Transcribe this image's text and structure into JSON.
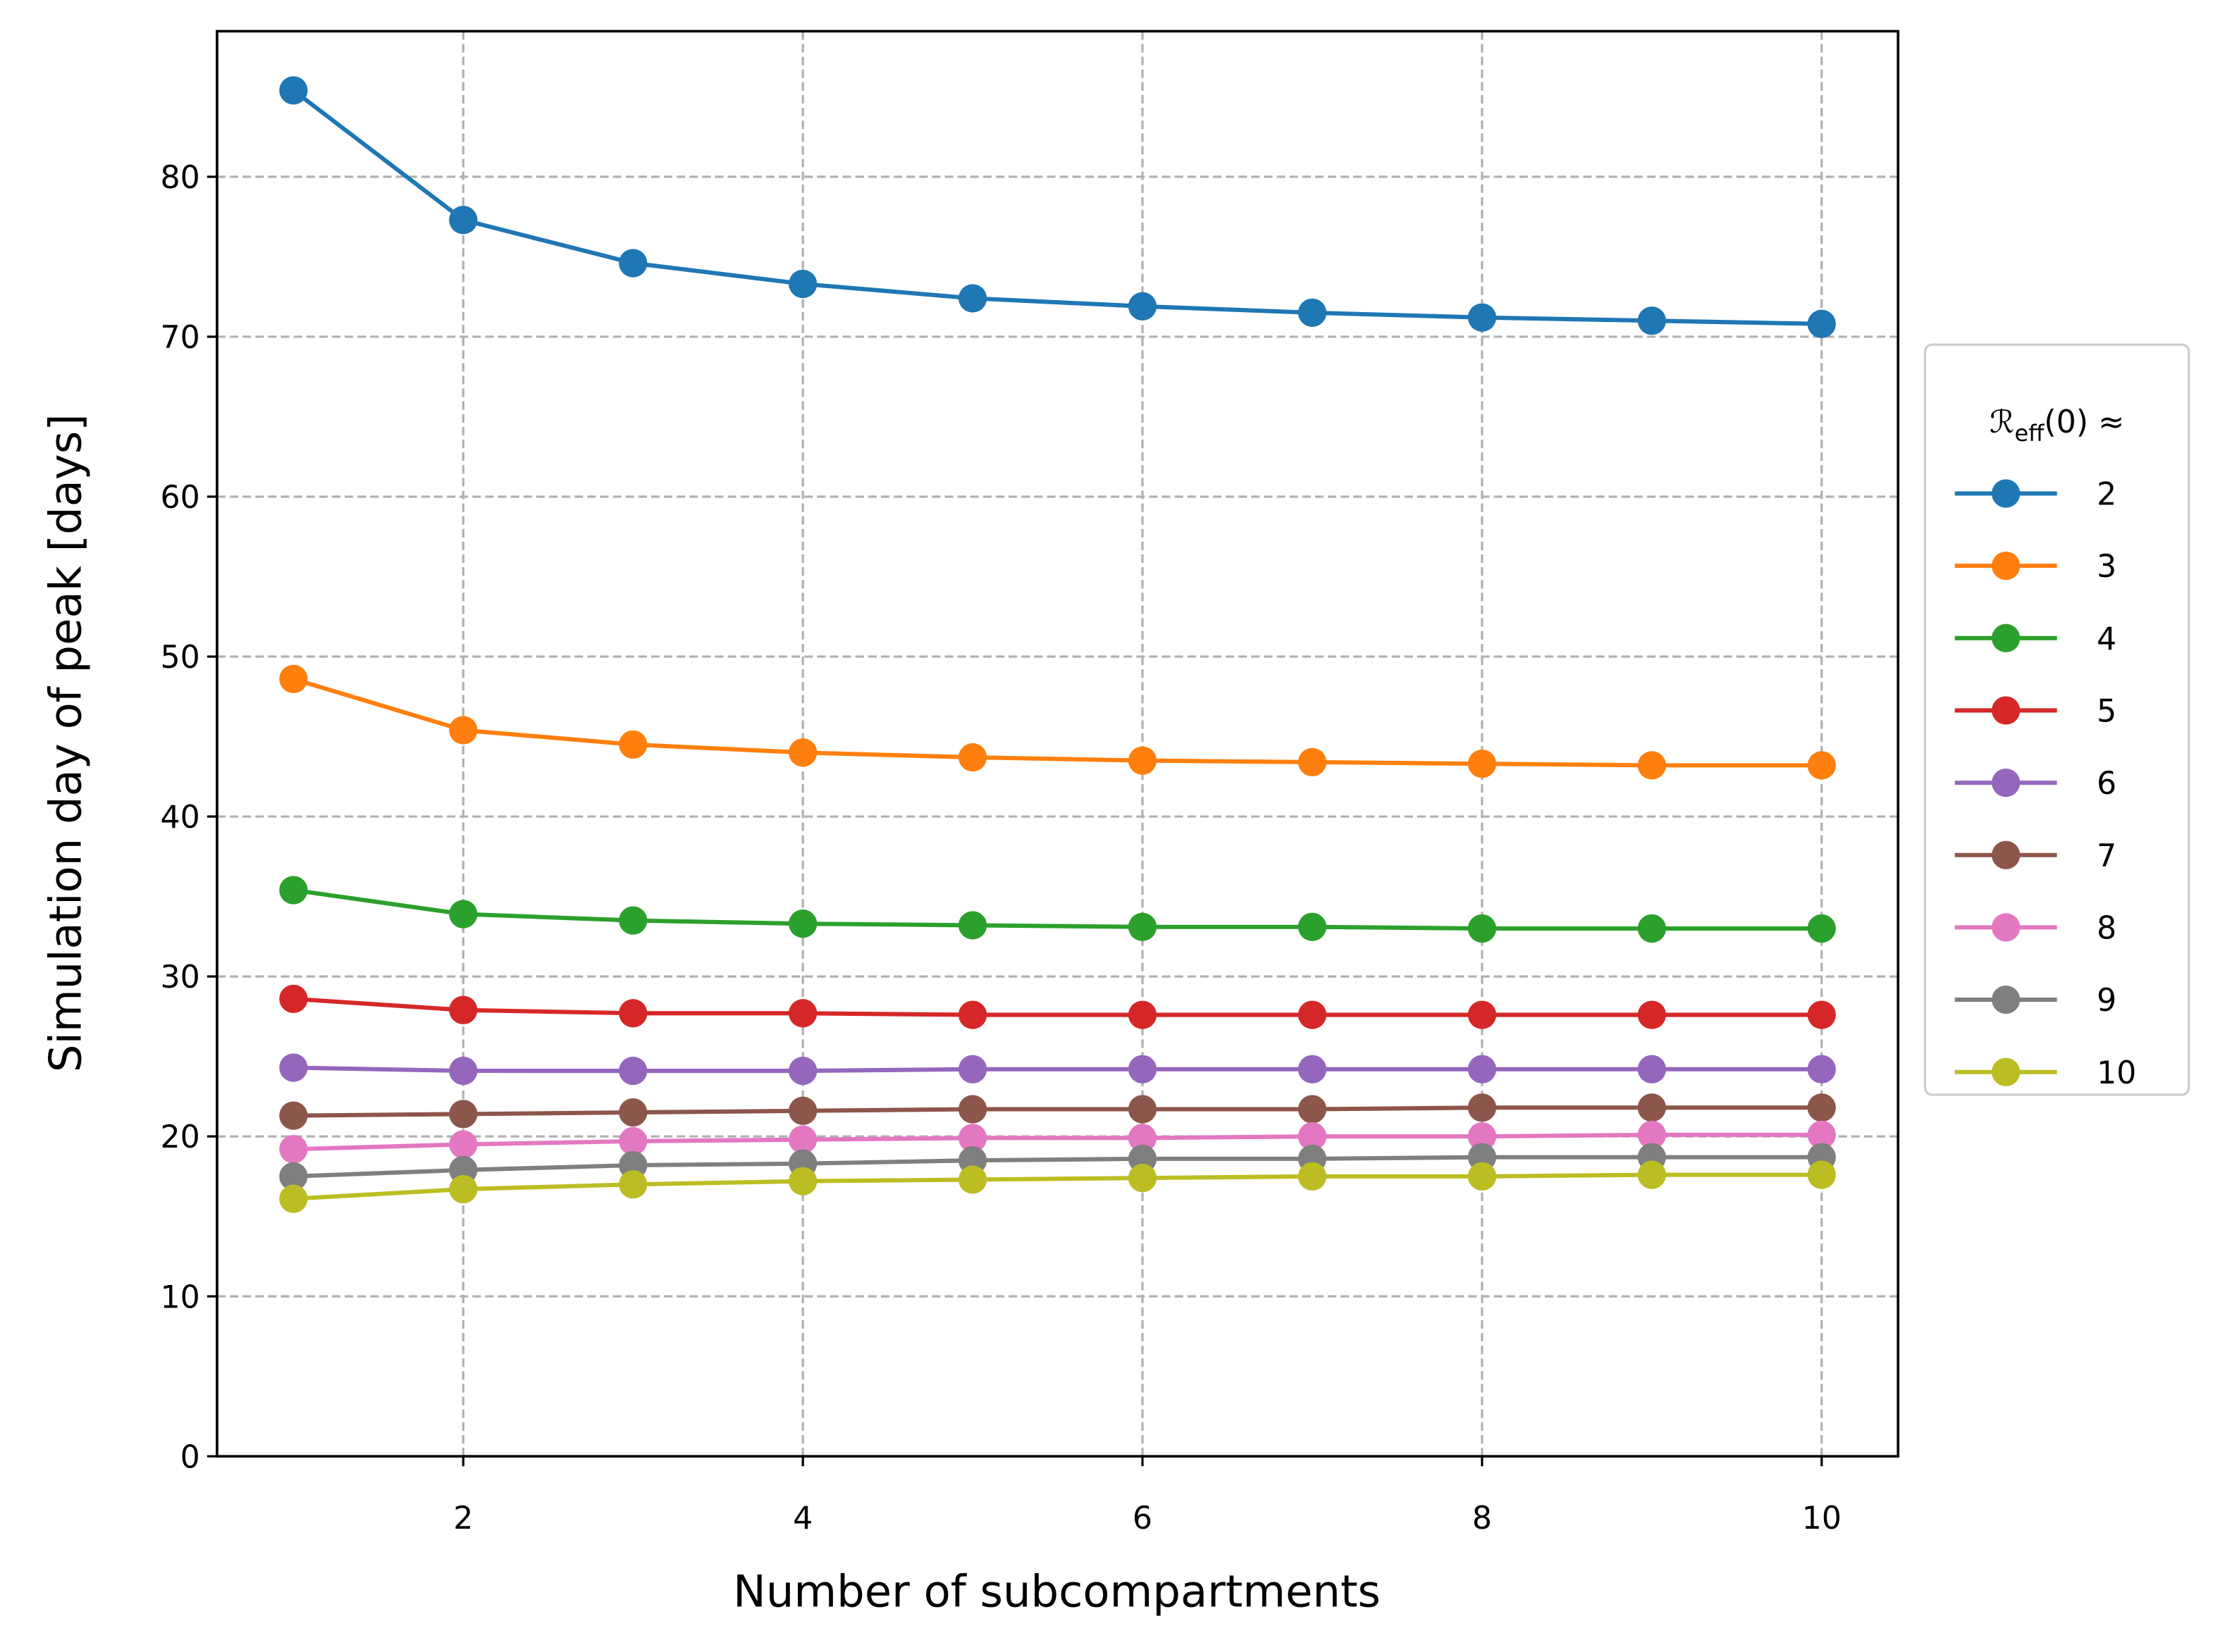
{
  "chart_data": {
    "type": "line",
    "x_label": "Number of subcompartments",
    "y_label": "Simulation day of peak [days]",
    "legend_title": {
      "symbol": "ℛ",
      "subscript": "eff",
      "rest": "(0) ≈"
    },
    "legend_position": "outside-right",
    "grid": true,
    "x": [
      1,
      2,
      3,
      4,
      5,
      6,
      7,
      8,
      9,
      10
    ],
    "xlim": [
      0.55,
      10.45
    ],
    "xticks": [
      2,
      4,
      6,
      8,
      10
    ],
    "ylim": [
      0,
      89.1
    ],
    "yticks": [
      0,
      10,
      20,
      30,
      40,
      50,
      60,
      70,
      80
    ],
    "series": [
      {
        "name": "2",
        "color": "#1f77b4",
        "values": [
          85.4,
          77.3,
          74.6,
          73.3,
          72.4,
          71.9,
          71.5,
          71.2,
          71.0,
          70.8
        ]
      },
      {
        "name": "3",
        "color": "#ff7f0e",
        "values": [
          48.6,
          45.4,
          44.5,
          44.0,
          43.7,
          43.5,
          43.4,
          43.3,
          43.2,
          43.2
        ]
      },
      {
        "name": "4",
        "color": "#2ca02c",
        "values": [
          35.4,
          33.9,
          33.5,
          33.3,
          33.2,
          33.1,
          33.1,
          33.0,
          33.0,
          33.0
        ]
      },
      {
        "name": "5",
        "color": "#d62728",
        "values": [
          28.6,
          27.9,
          27.7,
          27.7,
          27.6,
          27.6,
          27.6,
          27.6,
          27.6,
          27.6
        ]
      },
      {
        "name": "6",
        "color": "#9467bd",
        "values": [
          24.3,
          24.1,
          24.1,
          24.1,
          24.2,
          24.2,
          24.2,
          24.2,
          24.2,
          24.2
        ]
      },
      {
        "name": "7",
        "color": "#8c564b",
        "values": [
          21.3,
          21.4,
          21.5,
          21.6,
          21.7,
          21.7,
          21.7,
          21.8,
          21.8,
          21.8
        ]
      },
      {
        "name": "8",
        "color": "#e377c2",
        "values": [
          19.2,
          19.5,
          19.7,
          19.8,
          19.9,
          19.9,
          20.0,
          20.0,
          20.1,
          20.1
        ]
      },
      {
        "name": "9",
        "color": "#7f7f7f",
        "values": [
          17.5,
          17.9,
          18.2,
          18.3,
          18.5,
          18.6,
          18.6,
          18.7,
          18.7,
          18.7
        ]
      },
      {
        "name": "10",
        "color": "#bcbd22",
        "values": [
          16.1,
          16.7,
          17.0,
          17.2,
          17.3,
          17.4,
          17.5,
          17.5,
          17.6,
          17.6
        ]
      }
    ]
  }
}
